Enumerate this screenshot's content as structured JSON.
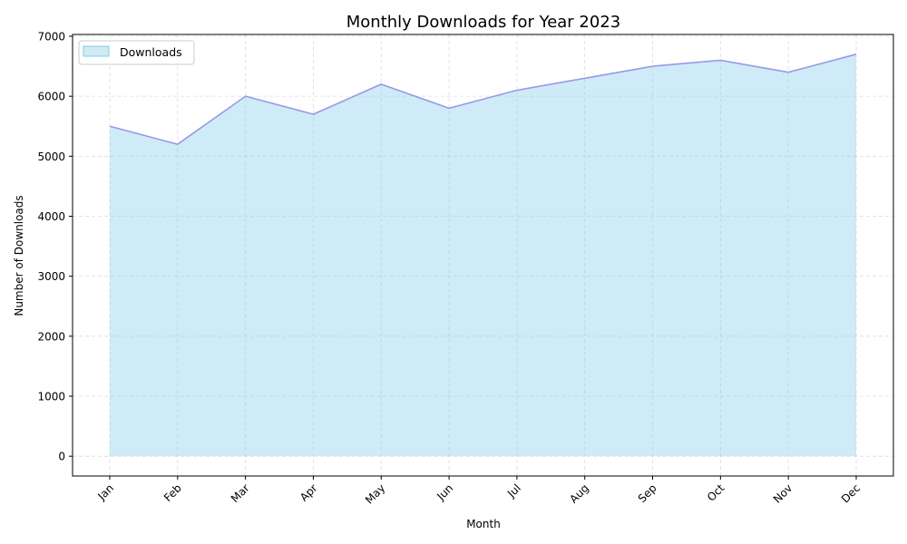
{
  "chart_data": {
    "type": "area",
    "title": "Monthly Downloads for Year 2023",
    "xlabel": "Month",
    "ylabel": "Number of Downloads",
    "categories": [
      "Jan",
      "Feb",
      "Mar",
      "Apr",
      "May",
      "Jun",
      "Jul",
      "Aug",
      "Sep",
      "Oct",
      "Nov",
      "Dec"
    ],
    "series": [
      {
        "name": "Downloads",
        "values": [
          5500,
          5200,
          6000,
          5700,
          6200,
          5800,
          6100,
          6300,
          6500,
          6600,
          6400,
          6700
        ]
      }
    ],
    "ylim": [
      -330,
      7030
    ],
    "yticks": [
      0,
      1000,
      2000,
      3000,
      4000,
      5000,
      6000,
      7000
    ],
    "grid": true,
    "legend_position": "upper-left",
    "colors": {
      "fill": "#87ceeb",
      "line": "#9999e6",
      "grid": "#b0b0b0"
    }
  }
}
